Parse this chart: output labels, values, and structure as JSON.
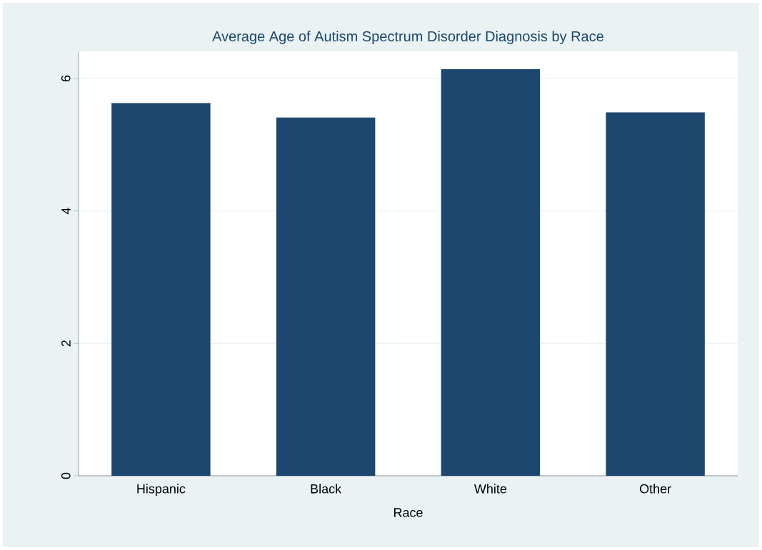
{
  "chart_data": {
    "type": "bar",
    "title": "Average Age of Autism Spectrum Disorder Diagnosis by Race",
    "xlabel": "Race",
    "categories": [
      "Hispanic",
      "Black",
      "White",
      "Other"
    ],
    "values": [
      5.63,
      5.41,
      6.14,
      5.49
    ],
    "color": "#1e476f",
    "ylim": [
      0,
      6.41
    ],
    "yticks": [
      0,
      2,
      4,
      6
    ],
    "grid": "y"
  }
}
